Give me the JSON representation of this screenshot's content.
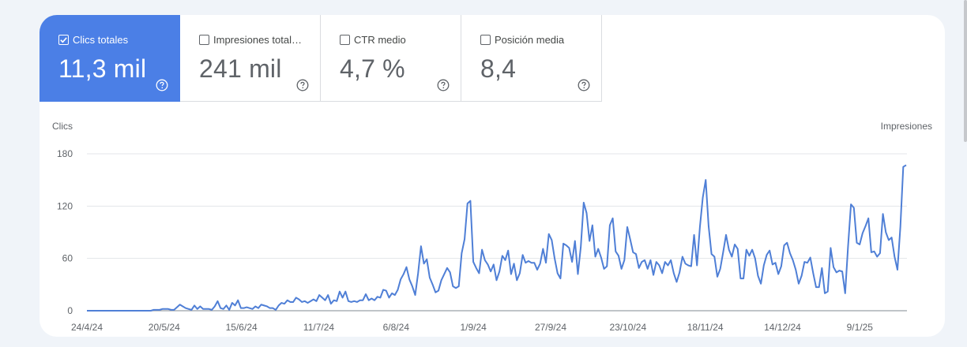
{
  "metrics": [
    {
      "label": "Clics totales",
      "value": "11,3 mil",
      "checked": true
    },
    {
      "label": "Impresiones total…",
      "value": "241 mil",
      "checked": false
    },
    {
      "label": "CTR medio",
      "value": "4,7 %",
      "checked": false
    },
    {
      "label": "Posición media",
      "value": "8,4",
      "checked": false
    }
  ],
  "colors": {
    "accent": "#4b7fe6",
    "line": "#4f7fd6",
    "grid": "#e3e5e8",
    "axis": "#9aa0a6"
  },
  "icons": {
    "help": "help-circle-icon",
    "checkbox": "checkbox-icon"
  },
  "chart_data": {
    "type": "line",
    "left_axis_label": "Clics",
    "right_axis_label": "Impresiones",
    "ylim": [
      0,
      180
    ],
    "y_ticks": [
      "0",
      "60",
      "120",
      "180"
    ],
    "x_tick_labels": [
      "24/4/24",
      "20/5/24",
      "15/6/24",
      "11/7/24",
      "6/8/24",
      "1/9/24",
      "27/9/24",
      "23/10/24",
      "18/11/24",
      "14/12/24",
      "9/1/25"
    ],
    "grid": true,
    "series": [
      {
        "values": [
          0,
          0,
          0,
          0,
          0,
          0,
          0,
          0,
          0,
          0,
          0,
          0,
          0,
          0,
          0,
          0,
          0,
          0,
          0,
          0,
          0,
          0,
          0,
          1,
          1,
          1,
          2,
          2,
          2,
          1,
          1,
          4,
          7,
          5,
          3,
          2,
          1,
          6,
          2,
          5,
          2,
          2,
          2,
          1,
          5,
          11,
          3,
          2,
          6,
          1,
          9,
          6,
          12,
          3,
          3,
          4,
          3,
          2,
          5,
          3,
          7,
          6,
          5,
          3,
          3,
          1,
          6,
          9,
          8,
          12,
          10,
          10,
          15,
          13,
          10,
          11,
          9,
          11,
          13,
          11,
          18,
          15,
          12,
          18,
          8,
          12,
          11,
          22,
          15,
          22,
          11,
          10,
          11,
          10,
          12,
          12,
          19,
          12,
          14,
          12,
          16,
          15,
          24,
          23,
          15,
          20,
          18,
          24,
          36,
          42,
          50,
          36,
          28,
          18,
          43,
          74,
          54,
          59,
          38,
          30,
          21,
          23,
          35,
          42,
          49,
          44,
          28,
          26,
          28,
          66,
          82,
          123,
          126,
          56,
          49,
          43,
          70,
          58,
          53,
          45,
          53,
          35,
          45,
          63,
          58,
          69,
          42,
          54,
          35,
          43,
          64,
          55,
          57,
          55,
          55,
          47,
          54,
          71,
          55,
          88,
          81,
          60,
          43,
          37,
          77,
          75,
          72,
          56,
          80,
          42,
          73,
          124,
          112,
          80,
          98,
          62,
          71,
          61,
          48,
          51,
          98,
          106,
          68,
          63,
          48,
          58,
          96,
          82,
          67,
          65,
          49,
          56,
          58,
          48,
          58,
          41,
          56,
          52,
          43,
          56,
          52,
          58,
          43,
          33,
          44,
          62,
          54,
          52,
          51,
          87,
          52,
          96,
          130,
          150,
          97,
          65,
          62,
          39,
          48,
          67,
          87,
          70,
          62,
          76,
          71,
          37,
          37,
          70,
          63,
          70,
          60,
          40,
          31,
          52,
          64,
          69,
          53,
          55,
          42,
          51,
          75,
          78,
          66,
          58,
          47,
          31,
          40,
          56,
          55,
          61,
          43,
          27,
          27,
          49,
          20,
          22,
          72,
          50,
          44,
          46,
          45,
          20,
          74,
          122,
          118,
          78,
          76,
          89,
          97,
          106,
          67,
          68,
          62,
          66,
          111,
          90,
          81,
          84,
          62,
          47,
          96,
          165,
          167
        ]
      }
    ]
  }
}
